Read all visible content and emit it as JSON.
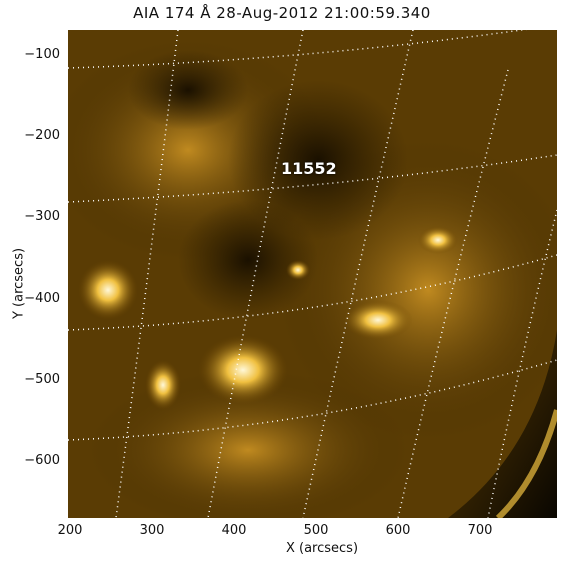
{
  "title": "AIA 174 Å 28-Aug-2012 21:00:59.340",
  "region_label": "11552",
  "x_axis": {
    "label": "X (arcsecs)",
    "ticks": [
      "200",
      "300",
      "400",
      "500",
      "600",
      "700"
    ]
  },
  "y_axis": {
    "label": "Y (arcsecs)",
    "ticks": [
      "−100",
      "−200",
      "−300",
      "−400",
      "−500",
      "−600"
    ]
  },
  "colors": {
    "base": "#3a2600",
    "bright": "#fff6cc",
    "grid": "#ffffff"
  }
}
